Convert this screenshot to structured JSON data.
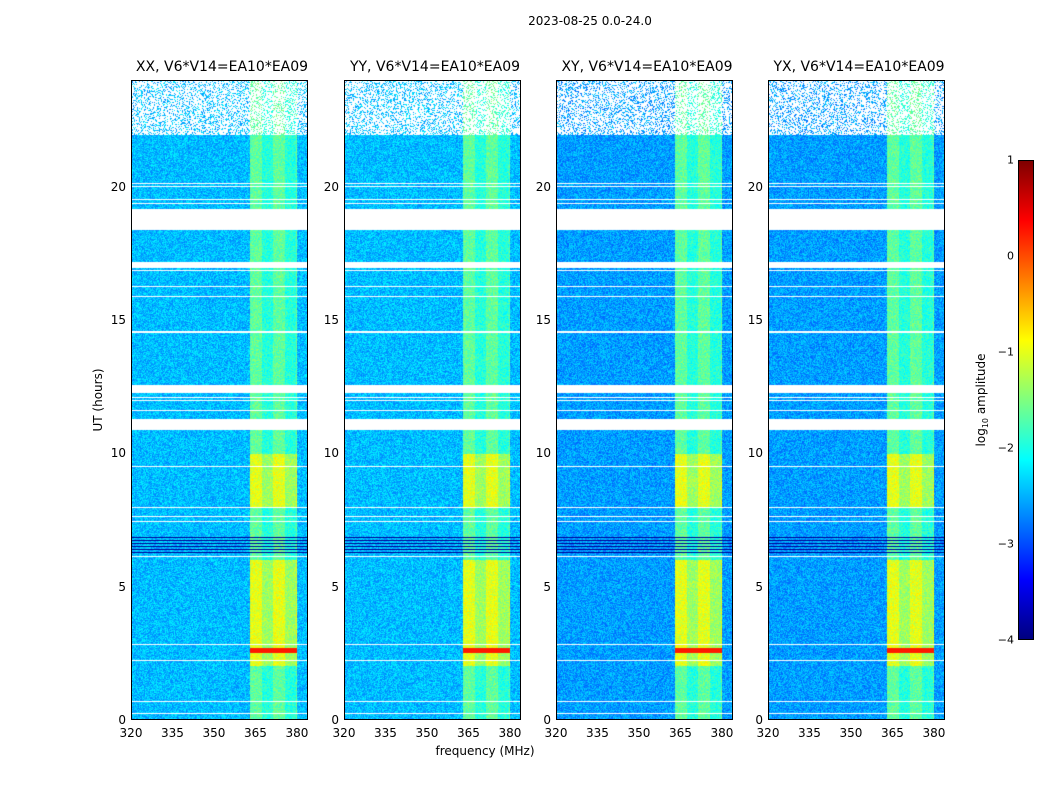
{
  "suptitle": "2023-08-25 0.0-24.0",
  "chart_data": [
    {
      "type": "heatmap",
      "panels": [
        {
          "title": "XX, V6*V14=EA10*EA09",
          "pol": "XX"
        },
        {
          "title": "YY, V6*V14=EA10*EA09",
          "pol": "YY"
        },
        {
          "title": "XY, V6*V14=EA10*EA09",
          "pol": "XY"
        },
        {
          "title": "YX, V6*V14=EA10*EA09",
          "pol": "YX"
        }
      ],
      "xlabel": "frequency (MHz)",
      "ylabel": "UT (hours)",
      "xlim": [
        320,
        384
      ],
      "ylim": [
        0,
        24
      ],
      "xticks": [
        "320",
        "335",
        "350",
        "365",
        "380"
      ],
      "yticks": [
        "0",
        "5",
        "10",
        "15",
        "20"
      ],
      "rfi_band_mhz": [
        363,
        380
      ],
      "flagged_ut_ranges": [
        [
          22.0,
          24.0
        ],
        [
          18.4,
          19.2
        ],
        [
          17.0,
          17.2
        ],
        [
          12.3,
          12.6
        ],
        [
          10.9,
          11.3
        ],
        [
          6.2,
          6.9
        ]
      ],
      "colorbar": {
        "label_prefix": "log",
        "label_sub": "10",
        "label_suffix": " amplitude",
        "range": [
          -4,
          1
        ],
        "ticks": [
          "1",
          "0",
          "−1",
          "−2",
          "−3",
          "−4"
        ],
        "colormap": "jet"
      }
    }
  ]
}
